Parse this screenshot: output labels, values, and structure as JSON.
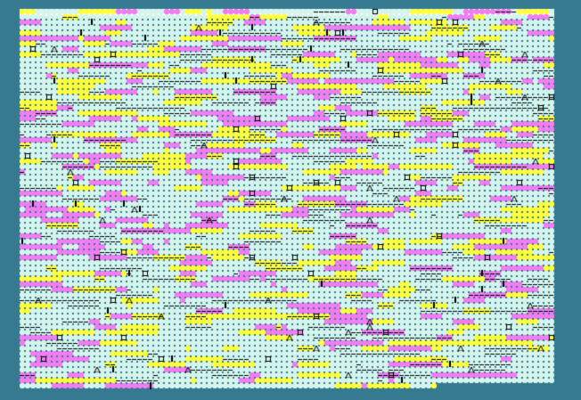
{
  "board": {
    "columns": 100,
    "rows": 71,
    "last_row_cells": 78,
    "colors": {
      "background": "#367a90",
      "cell_default": "#d4f4ec",
      "cell_yellow": "#ffff3c",
      "cell_magenta": "#f27cf2",
      "marker": "#000000",
      "header_strip": "#ffffff"
    },
    "markers": [
      "dash-line",
      "square-outline",
      "triangle",
      "vertical-bar"
    ]
  }
}
